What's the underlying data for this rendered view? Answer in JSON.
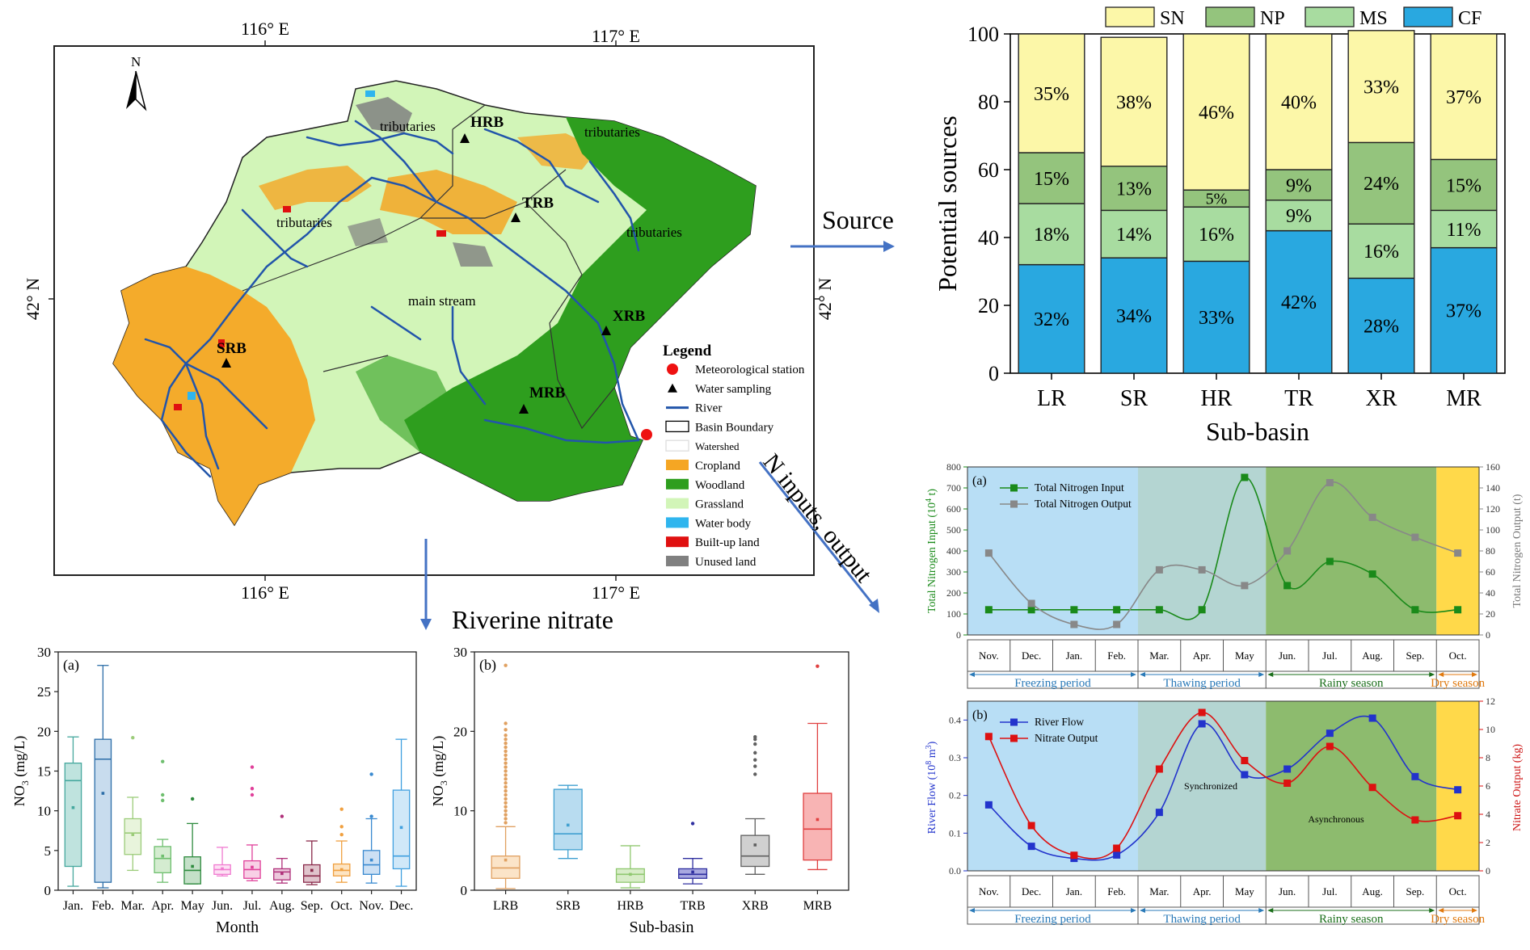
{
  "map": {
    "lon_labels": [
      "116° E",
      "117° E"
    ],
    "lat_label": "42° N",
    "north_label": "N",
    "places": [
      "HRB",
      "TRB",
      "XRB",
      "SRB",
      "MRB"
    ],
    "river_labels": [
      "tributaries",
      "tributaries",
      "tributaries",
      "tributaries",
      "main stream"
    ],
    "legend": {
      "title": "Legend",
      "items": [
        {
          "label": "Meteorological station",
          "color": "#ee1111",
          "kind": "circle"
        },
        {
          "label": "Water sampling",
          "color": "#000000",
          "kind": "triangle"
        },
        {
          "label": "River",
          "color": "#2255aa",
          "kind": "line"
        },
        {
          "label": "Basin Boundary",
          "color": "#000000",
          "kind": "box"
        },
        {
          "label": "Watershed",
          "color": "#dddddd",
          "kind": "box"
        },
        {
          "label": "Cropland",
          "color": "#f5a623",
          "kind": "fill"
        },
        {
          "label": "Woodland",
          "color": "#2e9e1e",
          "kind": "fill"
        },
        {
          "label": "Grassland",
          "color": "#d2f5b8",
          "kind": "fill"
        },
        {
          "label": "Water body",
          "color": "#2fb5ee",
          "kind": "fill"
        },
        {
          "label": "Built-up land",
          "color": "#e01010",
          "kind": "fill"
        },
        {
          "label": "Unused land",
          "color": "#808080",
          "kind": "fill"
        }
      ]
    }
  },
  "arrows": {
    "source": "Source",
    "nitrate": "Riverine nitrate",
    "ninputs": "N inputs, output"
  },
  "chart_data": [
    {
      "id": "sources",
      "type": "bar",
      "stacked": true,
      "categories": [
        "LR",
        "SR",
        "HR",
        "TR",
        "XR",
        "MR"
      ],
      "series": [
        {
          "name": "CF",
          "color": "#29a8e0",
          "values": [
            32,
            34,
            33,
            42,
            28,
            37
          ],
          "labels": [
            "32%",
            "34%",
            "33%",
            "42%",
            "28%",
            "37%"
          ]
        },
        {
          "name": "MS",
          "color": "#a8dca0",
          "values": [
            18,
            14,
            16,
            9,
            16,
            11
          ],
          "labels": [
            "18%",
            "14%",
            "16%",
            "9%",
            "16%",
            "11%"
          ]
        },
        {
          "name": "NP",
          "color": "#94c47d",
          "values": [
            15,
            13,
            5,
            9,
            24,
            15
          ],
          "labels": [
            "15%",
            "13%",
            "5%",
            "9%",
            "24%",
            "15%"
          ]
        },
        {
          "name": "SN",
          "color": "#fcf7a8",
          "values": [
            35,
            38,
            46,
            40,
            33,
            37
          ],
          "labels": [
            "35%",
            "38%",
            "46%",
            "40%",
            "33%",
            "37%"
          ]
        }
      ],
      "legend_order": [
        "SN",
        "NP",
        "MS",
        "CF"
      ],
      "ylim": [
        0,
        100
      ],
      "yticks": [
        "0",
        "20",
        "40",
        "60",
        "80",
        "100"
      ],
      "xlabel": "Sub-basin",
      "ylabel": "Potential sources"
    },
    {
      "id": "nitrogen",
      "type": "line",
      "panel": "(a)",
      "categories": [
        "Nov.",
        "Dec.",
        "Jan.",
        "Feb.",
        "Mar.",
        "Apr.",
        "May",
        "Jun.",
        "Jul.",
        "Aug.",
        "Sep.",
        "Oct."
      ],
      "series": [
        {
          "name": "Total Nitrogen Input",
          "color": "#1a8a1a",
          "axis": "left",
          "values": [
            120,
            120,
            120,
            120,
            120,
            120,
            750,
            235,
            350,
            290,
            120,
            120
          ]
        },
        {
          "name": "Total Nitrogen Output",
          "color": "#888888",
          "axis": "right",
          "values": [
            78,
            30,
            10,
            10,
            62,
            62,
            47,
            80,
            145,
            112,
            93,
            78
          ]
        }
      ],
      "ylim_left": [
        0,
        800
      ],
      "yticks_left": [
        "0",
        "100",
        "200",
        "300",
        "400",
        "500",
        "600",
        "700",
        "800"
      ],
      "ylim_right": [
        0,
        160
      ],
      "yticks_right": [
        "0",
        "20",
        "40",
        "60",
        "80",
        "100",
        "120",
        "140",
        "160"
      ],
      "ylabel_left_main": "Total Nitrogen Input (10",
      "ylabel_left_sup": "4",
      "ylabel_left_end": " t)",
      "ylabel_right": "Total Nitrogen Output (t)",
      "periods": [
        {
          "label": "Freezing period",
          "color": "#b8def5",
          "text": "#2a7ab8",
          "span": [
            0,
            4
          ]
        },
        {
          "label": "Thawing period",
          "color": "#b4d5d2",
          "text": "#2a7ab8",
          "span": [
            4,
            7
          ]
        },
        {
          "label": "Rainy season",
          "color": "#8dbb6e",
          "text": "#1a6e1a",
          "span": [
            7,
            11
          ]
        },
        {
          "label": "Dry season",
          "color": "#ffd94a",
          "text": "#e07a10",
          "span": [
            11,
            12
          ]
        }
      ]
    },
    {
      "id": "flow",
      "type": "line",
      "panel": "(b)",
      "categories": [
        "Nov.",
        "Dec.",
        "Jan.",
        "Feb.",
        "Mar.",
        "Apr.",
        "May",
        "Jun.",
        "Jul.",
        "Aug.",
        "Sep.",
        "Oct."
      ],
      "series": [
        {
          "name": "River Flow",
          "color": "#2233cc",
          "axis": "left",
          "values": [
            0.175,
            0.065,
            0.033,
            0.042,
            0.155,
            0.39,
            0.255,
            0.27,
            0.365,
            0.405,
            0.25,
            0.215
          ]
        },
        {
          "name": "Nitrate Output",
          "color": "#dd1111",
          "axis": "right",
          "values": [
            9.5,
            3.2,
            1.1,
            1.6,
            7.2,
            11.2,
            7.8,
            6.2,
            8.8,
            5.9,
            3.6,
            3.9
          ]
        }
      ],
      "ylim_left": [
        0,
        0.45
      ],
      "yticks_left": [
        "0.0",
        "0.1",
        "0.2",
        "0.3",
        "0.4"
      ],
      "ylim_right": [
        0,
        12
      ],
      "yticks_right": [
        "0",
        "2",
        "4",
        "6",
        "8",
        "10",
        "12"
      ],
      "ylabel_left_main": "River Flow (10",
      "ylabel_left_sup": "8",
      "ylabel_left_end": " m",
      "ylabel_left_sup2": "3",
      "ylabel_left_close": ")",
      "ylabel_right": "Nitrate Output (kg)",
      "annotations": [
        "Synchronized",
        "Asynchronous"
      ],
      "periods": [
        {
          "label": "Freezing period",
          "color": "#b8def5",
          "text": "#2a7ab8",
          "span": [
            0,
            4
          ]
        },
        {
          "label": "Thawing period",
          "color": "#b4d5d2",
          "text": "#2a7ab8",
          "span": [
            4,
            7
          ]
        },
        {
          "label": "Rainy season",
          "color": "#8dbb6e",
          "text": "#1a6e1a",
          "span": [
            7,
            11
          ]
        },
        {
          "label": "Dry season",
          "color": "#ffd94a",
          "text": "#e07a10",
          "span": [
            11,
            12
          ]
        }
      ]
    },
    {
      "id": "monthbox",
      "type": "box",
      "panel": "(a)",
      "categories": [
        "Jan.",
        "Feb.",
        "Mar.",
        "Apr.",
        "May",
        "Jun.",
        "Jul.",
        "Aug.",
        "Sep.",
        "Oct.",
        "Nov.",
        "Dec."
      ],
      "colors": [
        "#46a89e",
        "#2d6ea8",
        "#9ccc7a",
        "#6fbf6f",
        "#2e8b3e",
        "#f07ad0",
        "#e0409a",
        "#b0307a",
        "#8a2a4a",
        "#f0a040",
        "#3a8ad0",
        "#40a0e0"
      ],
      "fills": [
        "#bfe3de",
        "#c8dcee",
        "#e8f4dc",
        "#d4ecd0",
        "#c4e0c8",
        "#fde0f4",
        "#f8d0e6",
        "#ecc8dc",
        "#e0c4cc",
        "#fde4c2",
        "#cce0f4",
        "#d0e8f8"
      ],
      "min": [
        0.5,
        0.3,
        2.5,
        1.0,
        0.8,
        1.8,
        1.2,
        0.9,
        0.7,
        1.0,
        0.9,
        0.5
      ],
      "q1": [
        3.0,
        1.0,
        4.5,
        2.2,
        0.8,
        2.0,
        1.5,
        1.3,
        1.0,
        1.8,
        2.0,
        2.7
      ],
      "median": [
        13.8,
        16.5,
        7.2,
        4.0,
        2.5,
        2.6,
        2.6,
        2.3,
        1.8,
        2.5,
        3.2,
        4.3
      ],
      "q3": [
        16.0,
        19.0,
        9.0,
        5.5,
        4.2,
        3.2,
        3.7,
        2.7,
        3.2,
        3.3,
        5.0,
        12.6
      ],
      "max": [
        19.3,
        28.3,
        11.7,
        6.4,
        8.4,
        5.4,
        5.7,
        4.0,
        6.2,
        6.2,
        9.0,
        19.0
      ],
      "mean": [
        10.4,
        12.2,
        7.0,
        4.3,
        3.0,
        2.7,
        2.9,
        2.1,
        2.5,
        2.6,
        3.8,
        7.9
      ],
      "outliers": [
        [],
        [],
        [
          19.2
        ],
        [
          12.0,
          11.3,
          16.2
        ],
        [
          11.5
        ],
        [],
        [
          15.5,
          12.8,
          12.0
        ],
        [
          9.3
        ],
        [],
        [
          10.2,
          8.0,
          7.0
        ],
        [
          14.6,
          9.3
        ],
        []
      ],
      "ylim": [
        0,
        30
      ],
      "yticks": [
        "0",
        "5",
        "10",
        "15",
        "20",
        "25",
        "30"
      ],
      "xlabel": "Month",
      "ylabel_main": "NO",
      "ylabel_sub": "3",
      "ylabel_end": " (mg/L)"
    },
    {
      "id": "basinbox",
      "type": "box",
      "panel": "(b)",
      "categories": [
        "LRB",
        "SRB",
        "HRB",
        "TRB",
        "XRB",
        "MRB"
      ],
      "colors": [
        "#e0a060",
        "#40a0d0",
        "#90c870",
        "#3030a0",
        "#606060",
        "#e04040"
      ],
      "fills": [
        "#fbe4c8",
        "#b8dcf0",
        "#d8ecc8",
        "#a8a8e0",
        "#d0d0d0",
        "#f8b4b4"
      ],
      "min": [
        0.2,
        4.0,
        0.3,
        0.8,
        2.0,
        2.6
      ],
      "q1": [
        1.5,
        5.1,
        1.0,
        1.5,
        3.0,
        3.8
      ],
      "median": [
        2.8,
        7.1,
        2.0,
        2.0,
        4.3,
        7.7
      ],
      "q3": [
        4.3,
        12.7,
        2.7,
        2.7,
        6.9,
        12.2
      ],
      "max": [
        8.0,
        13.2,
        5.6,
        4.0,
        9.0,
        21.0
      ],
      "mean": [
        3.8,
        8.2,
        2.0,
        2.3,
        5.7,
        8.9
      ],
      "outliers": [
        [
          8.5,
          9.0,
          9.5,
          10.0,
          10.5,
          11.0,
          11.5,
          12.0,
          12.5,
          13.0,
          13.5,
          14.0,
          14.5,
          15.0,
          15.5,
          16.0,
          16.5,
          17.0,
          17.5,
          18.0,
          18.5,
          19.0,
          19.5,
          20.2,
          21.0,
          28.3
        ],
        [],
        [],
        [
          8.4
        ],
        [
          14.6,
          15.6,
          16.4,
          17.3,
          18.4,
          19.3,
          19.0
        ],
        [
          28.2
        ]
      ],
      "ylim": [
        0,
        30
      ],
      "yticks": [
        "0",
        "10",
        "20",
        "30"
      ],
      "xlabel": "Sub-basin",
      "ylabel_main": "NO",
      "ylabel_sub": "3",
      "ylabel_end": " (mg/L)"
    }
  ]
}
